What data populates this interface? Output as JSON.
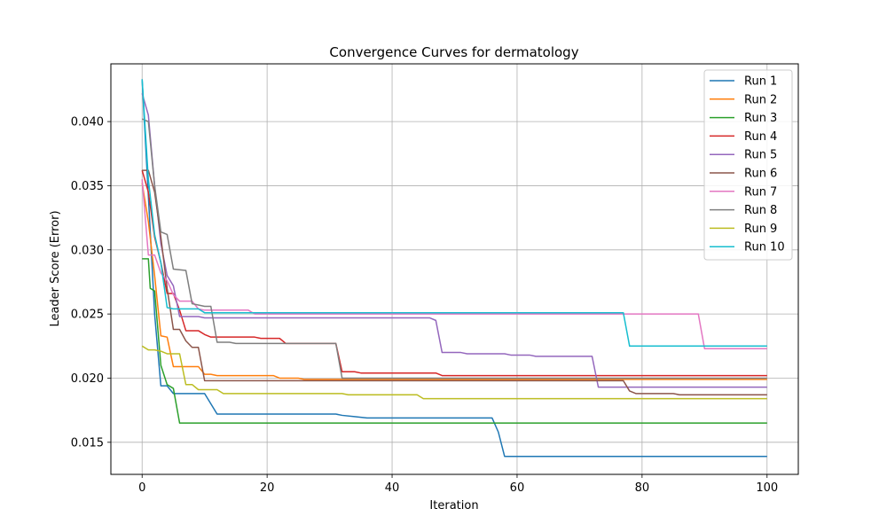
{
  "chart_data": {
    "type": "line",
    "title": "Convergence Curves for dermatology",
    "xlabel": "Iteration",
    "ylabel": "Leader Score (Error)",
    "xlim": [
      -5,
      105
    ],
    "ylim": [
      0.0125,
      0.0445
    ],
    "xticks": [
      0,
      20,
      40,
      60,
      80,
      100
    ],
    "yticks": [
      0.015,
      0.02,
      0.025,
      0.03,
      0.035,
      0.04
    ],
    "ytick_labels": [
      "0.015",
      "0.020",
      "0.025",
      "0.030",
      "0.035",
      "0.040"
    ],
    "xtick_labels": [
      "0",
      "20",
      "40",
      "60",
      "80",
      "100"
    ],
    "grid": true,
    "legend_position": "top-right",
    "series": [
      {
        "name": "Run 1",
        "color": "#1f77b4",
        "points": [
          [
            0,
            0.0433
          ],
          [
            1,
            0.0342
          ],
          [
            2,
            0.025
          ],
          [
            3,
            0.0194
          ],
          [
            4,
            0.0194
          ],
          [
            5,
            0.0188
          ],
          [
            10,
            0.0188
          ],
          [
            12,
            0.0172
          ],
          [
            31,
            0.0172
          ],
          [
            32,
            0.0171
          ],
          [
            34,
            0.017
          ],
          [
            36,
            0.0169
          ],
          [
            56,
            0.0169
          ],
          [
            57,
            0.0158
          ],
          [
            58,
            0.0139
          ],
          [
            100,
            0.0139
          ]
        ]
      },
      {
        "name": "Run 2",
        "color": "#ff7f0e",
        "points": [
          [
            0,
            0.0352
          ],
          [
            1,
            0.0322
          ],
          [
            2,
            0.028
          ],
          [
            3,
            0.0233
          ],
          [
            4,
            0.0232
          ],
          [
            5,
            0.0209
          ],
          [
            9,
            0.0209
          ],
          [
            10,
            0.0203
          ],
          [
            11,
            0.0203
          ],
          [
            12,
            0.0202
          ],
          [
            21,
            0.0202
          ],
          [
            22,
            0.02
          ],
          [
            25,
            0.02
          ],
          [
            26,
            0.0199
          ],
          [
            100,
            0.0199
          ]
        ]
      },
      {
        "name": "Run 3",
        "color": "#2ca02c",
        "points": [
          [
            0,
            0.0293
          ],
          [
            1,
            0.0293
          ],
          [
            1.3,
            0.027
          ],
          [
            2,
            0.0268
          ],
          [
            3,
            0.021
          ],
          [
            4,
            0.0195
          ],
          [
            5,
            0.0192
          ],
          [
            6,
            0.0165
          ],
          [
            100,
            0.0165
          ]
        ]
      },
      {
        "name": "Run 4",
        "color": "#d62728",
        "points": [
          [
            0,
            0.0362
          ],
          [
            1,
            0.0345
          ],
          [
            2,
            0.031
          ],
          [
            3,
            0.029
          ],
          [
            4,
            0.0266
          ],
          [
            5,
            0.0266
          ],
          [
            6,
            0.0253
          ],
          [
            7,
            0.0237
          ],
          [
            9,
            0.0237
          ],
          [
            10,
            0.0234
          ],
          [
            11,
            0.0232
          ],
          [
            18,
            0.0232
          ],
          [
            19,
            0.0231
          ],
          [
            22,
            0.0231
          ],
          [
            23,
            0.0227
          ],
          [
            31,
            0.0227
          ],
          [
            32,
            0.0205
          ],
          [
            34,
            0.0205
          ],
          [
            35,
            0.0204
          ],
          [
            47,
            0.0204
          ],
          [
            48,
            0.0202
          ],
          [
            100,
            0.0202
          ]
        ]
      },
      {
        "name": "Run 5",
        "color": "#9467bd",
        "points": [
          [
            0,
            0.0422
          ],
          [
            1,
            0.0405
          ],
          [
            2,
            0.035
          ],
          [
            3,
            0.0305
          ],
          [
            4,
            0.028
          ],
          [
            5,
            0.0272
          ],
          [
            6,
            0.0248
          ],
          [
            9,
            0.0248
          ],
          [
            10,
            0.0247
          ],
          [
            46,
            0.0247
          ],
          [
            47,
            0.0245
          ],
          [
            48,
            0.022
          ],
          [
            51,
            0.022
          ],
          [
            52,
            0.0219
          ],
          [
            58,
            0.0219
          ],
          [
            59,
            0.0218
          ],
          [
            62,
            0.0218
          ],
          [
            63,
            0.0217
          ],
          [
            72,
            0.0217
          ],
          [
            73,
            0.0193
          ],
          [
            100,
            0.0193
          ]
        ]
      },
      {
        "name": "Run 6",
        "color": "#8c564b",
        "points": [
          [
            0,
            0.0362
          ],
          [
            1,
            0.0362
          ],
          [
            2,
            0.0345
          ],
          [
            3,
            0.031
          ],
          [
            4,
            0.027
          ],
          [
            5,
            0.0238
          ],
          [
            6,
            0.0238
          ],
          [
            7,
            0.0229
          ],
          [
            8,
            0.0224
          ],
          [
            9,
            0.0224
          ],
          [
            10,
            0.0198
          ],
          [
            77,
            0.0198
          ],
          [
            78,
            0.019
          ],
          [
            79,
            0.0188
          ],
          [
            85,
            0.0188
          ],
          [
            86,
            0.0187
          ],
          [
            100,
            0.0187
          ]
        ]
      },
      {
        "name": "Run 7",
        "color": "#e377c2",
        "points": [
          [
            0,
            0.0355
          ],
          [
            1,
            0.0296
          ],
          [
            2,
            0.0296
          ],
          [
            3,
            0.0282
          ],
          [
            4,
            0.0276
          ],
          [
            5,
            0.0265
          ],
          [
            6,
            0.026
          ],
          [
            8,
            0.026
          ],
          [
            9,
            0.0254
          ],
          [
            10,
            0.0253
          ],
          [
            17,
            0.0253
          ],
          [
            18,
            0.025
          ],
          [
            89,
            0.025
          ],
          [
            90,
            0.0223
          ],
          [
            100,
            0.0223
          ]
        ]
      },
      {
        "name": "Run 8",
        "color": "#7f7f7f",
        "points": [
          [
            0,
            0.0402
          ],
          [
            1,
            0.04
          ],
          [
            2,
            0.035
          ],
          [
            3,
            0.0314
          ],
          [
            4,
            0.0312
          ],
          [
            5,
            0.0285
          ],
          [
            7,
            0.0284
          ],
          [
            8,
            0.0258
          ],
          [
            9,
            0.0257
          ],
          [
            10,
            0.0256
          ],
          [
            11,
            0.0256
          ],
          [
            12,
            0.0228
          ],
          [
            14,
            0.0228
          ],
          [
            15,
            0.0227
          ],
          [
            31,
            0.0227
          ],
          [
            32,
            0.02
          ],
          [
            100,
            0.02
          ]
        ]
      },
      {
        "name": "Run 9",
        "color": "#bcbd22",
        "points": [
          [
            0,
            0.0225
          ],
          [
            1,
            0.0222
          ],
          [
            2,
            0.0222
          ],
          [
            3,
            0.0221
          ],
          [
            4,
            0.0219
          ],
          [
            6,
            0.0219
          ],
          [
            7,
            0.0195
          ],
          [
            8,
            0.0195
          ],
          [
            9,
            0.0191
          ],
          [
            12,
            0.0191
          ],
          [
            13,
            0.0188
          ],
          [
            32,
            0.0188
          ],
          [
            33,
            0.0187
          ],
          [
            44,
            0.0187
          ],
          [
            45,
            0.0184
          ],
          [
            100,
            0.0184
          ]
        ]
      },
      {
        "name": "Run 10",
        "color": "#17becf",
        "points": [
          [
            0,
            0.0433
          ],
          [
            1,
            0.0355
          ],
          [
            2,
            0.0312
          ],
          [
            3,
            0.029
          ],
          [
            4,
            0.0255
          ],
          [
            5,
            0.0254
          ],
          [
            9,
            0.0254
          ],
          [
            10,
            0.0251
          ],
          [
            77,
            0.0251
          ],
          [
            78,
            0.0225
          ],
          [
            100,
            0.0225
          ]
        ]
      }
    ]
  }
}
